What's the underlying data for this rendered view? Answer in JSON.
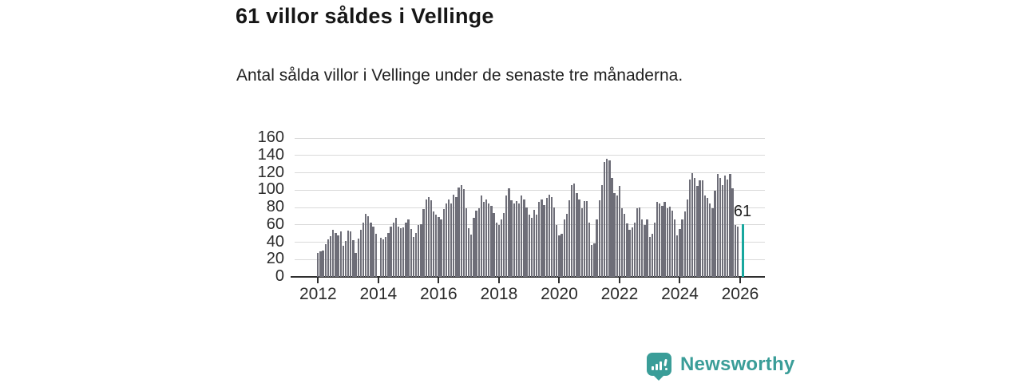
{
  "header": {
    "title": "61 villor såldes i Vellinge",
    "subtitle": "Antal sålda villor i Vellinge under de senaste tre månaderna."
  },
  "brand": {
    "name": "Newsworthy",
    "icon": "newsworthy-speech-bubble-chart-icon",
    "color": "#3a9d98"
  },
  "chart_data": {
    "type": "bar",
    "title": "61 villor såldes i Vellinge",
    "subtitle": "Antal sålda villor i Vellinge under de senaste tre månaderna.",
    "frequency": "monthly",
    "x_start": "2012-01",
    "x_end": "2026-02",
    "xlabel": "",
    "ylabel": "",
    "ylim": [
      0,
      160
    ],
    "yticks": [
      0,
      20,
      40,
      60,
      80,
      100,
      120,
      140,
      160
    ],
    "xticks": [
      "2012",
      "2014",
      "2016",
      "2018",
      "2020",
      "2022",
      "2024",
      "2026"
    ],
    "grid": "horizontal",
    "legend": "none",
    "bar_color": "#6e6e78",
    "highlight_color": "#18a79e",
    "values": [
      28,
      29,
      30,
      38,
      43,
      47,
      54,
      51,
      48,
      52,
      36,
      41,
      53,
      52,
      42,
      28,
      44,
      54,
      63,
      73,
      70,
      63,
      58,
      50,
      0,
      45,
      43,
      46,
      51,
      58,
      63,
      68,
      58,
      56,
      57,
      63,
      66,
      55,
      46,
      51,
      60,
      61,
      78,
      89,
      92,
      88,
      75,
      72,
      69,
      66,
      78,
      85,
      89,
      85,
      95,
      92,
      103,
      106,
      101,
      79,
      56,
      49,
      68,
      76,
      79,
      94,
      86,
      89,
      85,
      82,
      74,
      63,
      60,
      66,
      74,
      94,
      102,
      88,
      85,
      87,
      85,
      94,
      89,
      80,
      72,
      68,
      77,
      72,
      86,
      89,
      83,
      91,
      95,
      92,
      80,
      60,
      48,
      50,
      66,
      73,
      88,
      106,
      108,
      97,
      89,
      79,
      87,
      87,
      63,
      37,
      39,
      66,
      88,
      106,
      132,
      136,
      134,
      114,
      97,
      94,
      105,
      79,
      73,
      62,
      54,
      57,
      63,
      79,
      80,
      66,
      60,
      66,
      46,
      50,
      63,
      86,
      85,
      82,
      86,
      79,
      81,
      76,
      66,
      48,
      55,
      66,
      75,
      89,
      112,
      120,
      114,
      105,
      111,
      111,
      94,
      91,
      85,
      79,
      99,
      119,
      114,
      106,
      117,
      112,
      119,
      102,
      60,
      58
    ],
    "highlight": {
      "x": "2026-02",
      "value": 61,
      "label": "61",
      "gap_before_slots": 1
    }
  }
}
